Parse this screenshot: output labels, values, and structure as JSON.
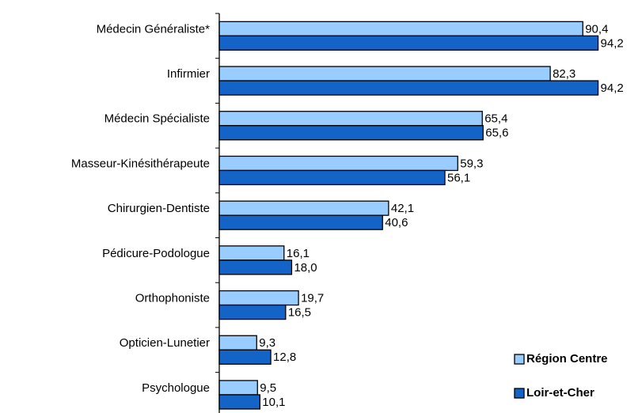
{
  "chart_data": {
    "type": "bar",
    "orientation": "horizontal",
    "categories": [
      "Médecin Généraliste*",
      "Infirmier",
      "Médecin Spécialiste",
      "Masseur-Kinésithérapeute",
      "Chirurgien-Dentiste",
      "Pédicure-Podologue",
      "Orthophoniste",
      "Opticien-Lunetier",
      "Psychologue"
    ],
    "series": [
      {
        "name": "Région Centre",
        "color": "#99ccff",
        "values": [
          90.4,
          82.3,
          65.4,
          59.3,
          42.1,
          16.1,
          19.7,
          9.3,
          9.5
        ],
        "value_labels": [
          "90,4",
          "82,3",
          "65,4",
          "59,3",
          "42,1",
          "16,1",
          "19,7",
          "9,3",
          "9,5"
        ]
      },
      {
        "name": "Loir-et-Cher",
        "color": "#1464c8",
        "values": [
          94.2,
          94.2,
          65.6,
          56.1,
          40.6,
          18.0,
          16.5,
          12.8,
          10.1
        ],
        "value_labels": [
          "94,2",
          "94,2",
          "65,6",
          "56,1",
          "40,6",
          "18,0",
          "16,5",
          "12,8",
          "10,1"
        ]
      }
    ],
    "xlim": [
      0,
      100
    ],
    "legend": "lower right"
  }
}
